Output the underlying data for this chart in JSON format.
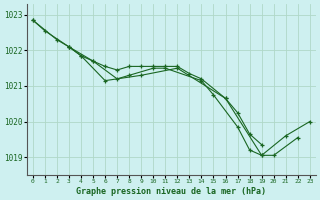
{
  "title": "Graphe pression niveau de la mer (hPa)",
  "bg_color": "#cef0f0",
  "grid_color": "#b0d8c8",
  "line_color": "#1a6622",
  "ylim": [
    1018.5,
    1023.3
  ],
  "xlim": [
    -0.5,
    23.5
  ],
  "yticks": [
    1019,
    1020,
    1021,
    1022,
    1023
  ],
  "xticks": [
    0,
    1,
    2,
    3,
    4,
    5,
    6,
    7,
    8,
    9,
    10,
    11,
    12,
    13,
    14,
    15,
    16,
    17,
    18,
    19,
    20,
    21,
    22,
    23
  ],
  "line1_x": [
    0,
    1,
    3,
    5,
    6,
    7,
    8,
    9,
    10,
    11,
    12,
    13,
    14,
    16,
    19,
    21,
    23
  ],
  "line1_y": [
    1022.85,
    1022.55,
    1022.1,
    1021.7,
    1021.55,
    1021.45,
    1021.55,
    1021.55,
    1021.55,
    1021.55,
    1021.55,
    1021.35,
    1021.2,
    1020.65,
    1019.05,
    1019.6,
    1020.0
  ],
  "line2_x": [
    0,
    2,
    3,
    4,
    5,
    7,
    8,
    10,
    11,
    14,
    15,
    17,
    18,
    19,
    20,
    22
  ],
  "line2_y": [
    1022.85,
    1022.3,
    1022.1,
    1021.85,
    1021.7,
    1021.2,
    1021.3,
    1021.5,
    1021.5,
    1021.15,
    1020.75,
    1019.85,
    1019.2,
    1019.05,
    1019.05,
    1019.55
  ],
  "line3_x": [
    3,
    4,
    6,
    9,
    12,
    16,
    17,
    18,
    19
  ],
  "line3_y": [
    1022.1,
    1021.85,
    1021.15,
    1021.3,
    1021.5,
    1020.65,
    1020.25,
    1019.65,
    1019.35
  ],
  "ytick_fontsize": 5.5,
  "xtick_fontsize": 4.5,
  "xlabel_fontsize": 6.0
}
